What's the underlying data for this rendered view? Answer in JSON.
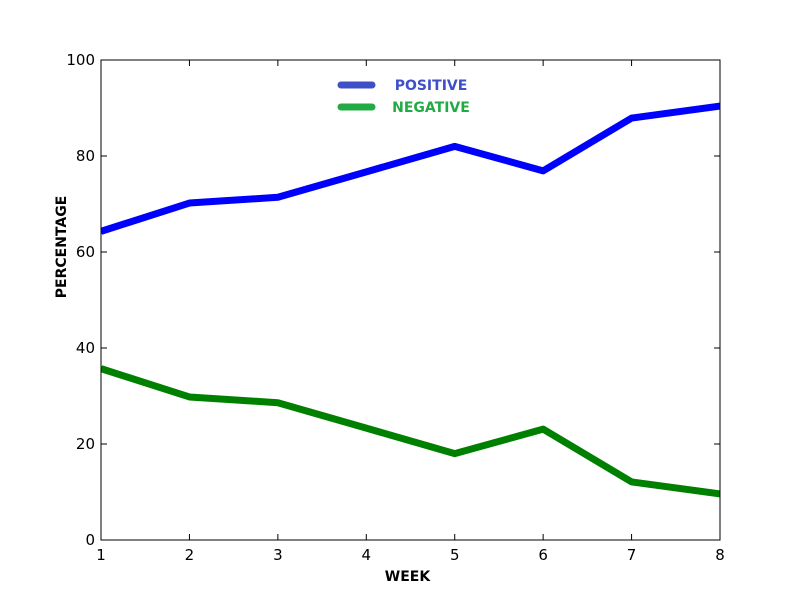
{
  "chart_data": {
    "type": "line",
    "x": [
      1,
      2,
      3,
      4,
      5,
      6,
      7,
      8
    ],
    "series": [
      {
        "name": "POSITIVE",
        "color": "#0000ff",
        "legend_color": "#3f4fc8",
        "values": [
          64.3,
          70.2,
          71.4,
          76.7,
          82.0,
          76.9,
          87.9,
          90.4
        ]
      },
      {
        "name": "NEGATIVE",
        "color": "#008000",
        "legend_color": "#22aa44",
        "values": [
          35.7,
          29.8,
          28.6,
          23.3,
          18.0,
          23.1,
          12.1,
          9.6
        ]
      }
    ],
    "xlabel": "WEEK",
    "ylabel": "PERCENTAGE",
    "xlim": [
      1,
      8
    ],
    "ylim": [
      0,
      100
    ],
    "xticks": [
      1,
      2,
      3,
      4,
      5,
      6,
      7,
      8
    ],
    "yticks": [
      0,
      20,
      40,
      60,
      80,
      100
    ],
    "grid": false,
    "legend_position": "top-center"
  }
}
